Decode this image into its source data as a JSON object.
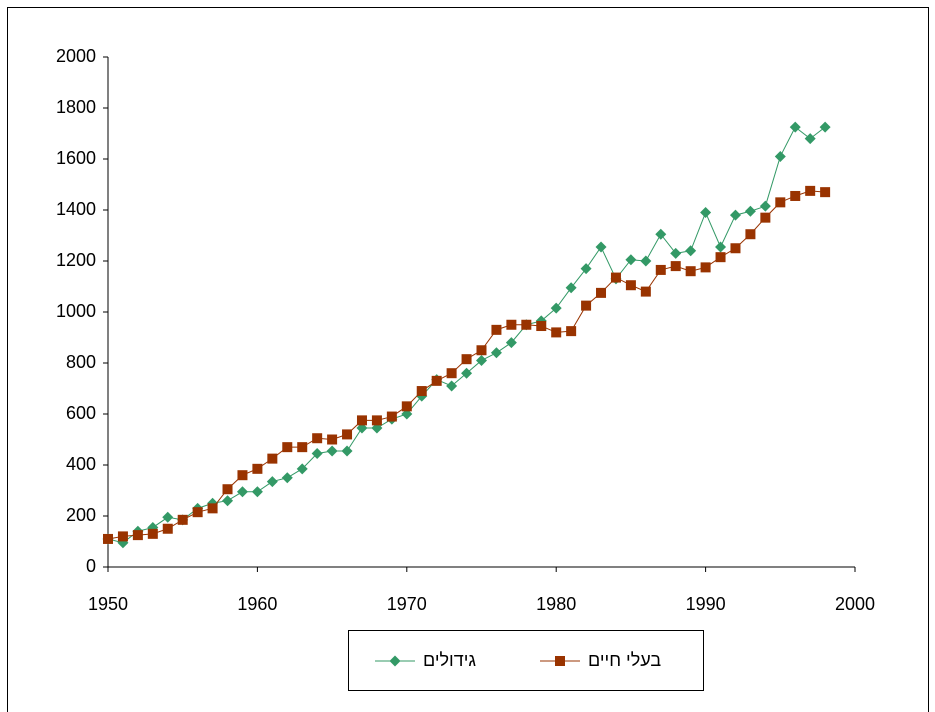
{
  "chart_data": {
    "type": "line",
    "x": [
      1950,
      1951,
      1952,
      1953,
      1954,
      1955,
      1956,
      1957,
      1958,
      1959,
      1960,
      1961,
      1962,
      1963,
      1964,
      1965,
      1966,
      1967,
      1968,
      1969,
      1970,
      1971,
      1972,
      1973,
      1974,
      1975,
      1976,
      1977,
      1978,
      1979,
      1980,
      1981,
      1982,
      1983,
      1984,
      1985,
      1986,
      1987,
      1988,
      1989,
      1990,
      1991,
      1992,
      1993,
      1994,
      1995,
      1996,
      1997,
      1998
    ],
    "series": [
      {
        "name": "גידולים",
        "color": "#339966",
        "marker": "diamond",
        "values": [
          110,
          95,
          140,
          155,
          195,
          185,
          230,
          250,
          260,
          295,
          295,
          335,
          350,
          385,
          445,
          455,
          455,
          545,
          545,
          580,
          600,
          670,
          735,
          710,
          760,
          810,
          840,
          880,
          950,
          965,
          1015,
          1095,
          1170,
          1255,
          1130,
          1205,
          1200,
          1305,
          1230,
          1240,
          1390,
          1255,
          1380,
          1395,
          1415,
          1610,
          1725,
          1680,
          1725
        ]
      },
      {
        "name": "בעלי חיים",
        "color": "#993300",
        "marker": "square",
        "values": [
          110,
          120,
          125,
          130,
          150,
          185,
          215,
          230,
          305,
          360,
          385,
          425,
          470,
          470,
          505,
          500,
          520,
          575,
          575,
          590,
          630,
          690,
          730,
          760,
          815,
          850,
          930,
          950,
          950,
          945,
          920,
          925,
          1025,
          1075,
          1135,
          1105,
          1080,
          1165,
          1180,
          1160,
          1175,
          1215,
          1250,
          1305,
          1370,
          1430,
          1455,
          1475,
          1470
        ]
      }
    ],
    "xlim": [
      1950,
      2000
    ],
    "xticks": [
      1950,
      1960,
      1970,
      1980,
      1990,
      2000
    ],
    "ylim": [
      0,
      2000
    ],
    "yticks": [
      0,
      200,
      400,
      600,
      800,
      1000,
      1200,
      1400,
      1600,
      1800,
      2000
    ],
    "grid": false,
    "legend": "bottom"
  }
}
